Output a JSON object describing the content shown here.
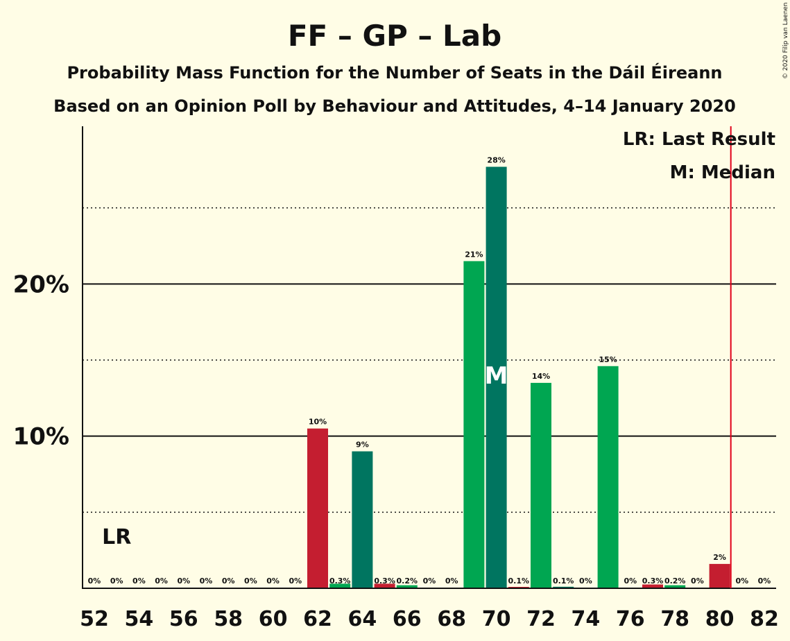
{
  "chart_data": {
    "type": "bar",
    "title": "FF – GP – Lab",
    "subtitle": "Probability Mass Function for the Number of Seats in the Dáil Éireann",
    "subtitle2": "Based on an Opinion Poll by Behaviour and Attitudes, 4–14 January 2020",
    "copyright": "© 2020 Filip van Laenen",
    "legend": {
      "last_result": "LR: Last Result",
      "median": "M: Median",
      "placement": "top-right"
    },
    "lr_label": "LR",
    "lr_label_seat": 53,
    "median_label": "M",
    "median_seat": 70,
    "last_result_seat": 80.5,
    "x": [
      52,
      53,
      54,
      55,
      56,
      57,
      58,
      59,
      60,
      61,
      62,
      63,
      64,
      65,
      66,
      67,
      68,
      69,
      70,
      71,
      72,
      73,
      74,
      75,
      76,
      77,
      78,
      79,
      80,
      81,
      82
    ],
    "values": [
      0,
      0,
      0,
      0,
      0,
      0,
      0,
      0,
      0,
      0,
      10.5,
      0.3,
      9.0,
      0.3,
      0.2,
      0,
      0,
      21.5,
      27.7,
      0.05,
      13.5,
      0.1,
      0,
      14.6,
      0,
      0.25,
      0.2,
      0,
      1.6,
      0,
      0
    ],
    "labels": [
      "0%",
      "0%",
      "0%",
      "0%",
      "0%",
      "0%",
      "0%",
      "0%",
      "0%",
      "0%",
      "10%",
      "0.3%",
      "9%",
      "0.3%",
      "0.2%",
      "0%",
      "0%",
      "21%",
      "28%",
      "0.1%",
      "14%",
      "0.1%",
      "0%",
      "15%",
      "0%",
      "0.3%",
      "0.2%",
      "0%",
      "2%",
      "0%",
      "0%"
    ],
    "colors": [
      "#C41E30",
      "#00A651",
      "#007560",
      "#C41E30",
      "#00A651",
      "#007560",
      "#C41E30",
      "#00A651",
      "#007560",
      "#C41E30",
      "#C41E30",
      "#00A651",
      "#007560",
      "#C41E30",
      "#00A651",
      "#007560",
      "#C41E30",
      "#00A651",
      "#007560",
      "#C41E30",
      "#00A651",
      "#007560",
      "#C41E30",
      "#00A651",
      "#007560",
      "#C41E30",
      "#00A651",
      "#007560",
      "#C41E30",
      "#00A651",
      "#007560"
    ],
    "x_tick_labels": [
      "52",
      "54",
      "56",
      "58",
      "60",
      "62",
      "64",
      "66",
      "68",
      "70",
      "72",
      "74",
      "76",
      "78",
      "80",
      "82"
    ],
    "y_ticks": [
      {
        "value": 10,
        "label": "10%"
      },
      {
        "value": 20,
        "label": "20%"
      }
    ],
    "ylim": [
      0,
      30
    ],
    "grid": {
      "solid": [
        10,
        20
      ],
      "dotted": [
        5,
        15,
        25
      ]
    },
    "lr_line_color": "#E0001A"
  }
}
